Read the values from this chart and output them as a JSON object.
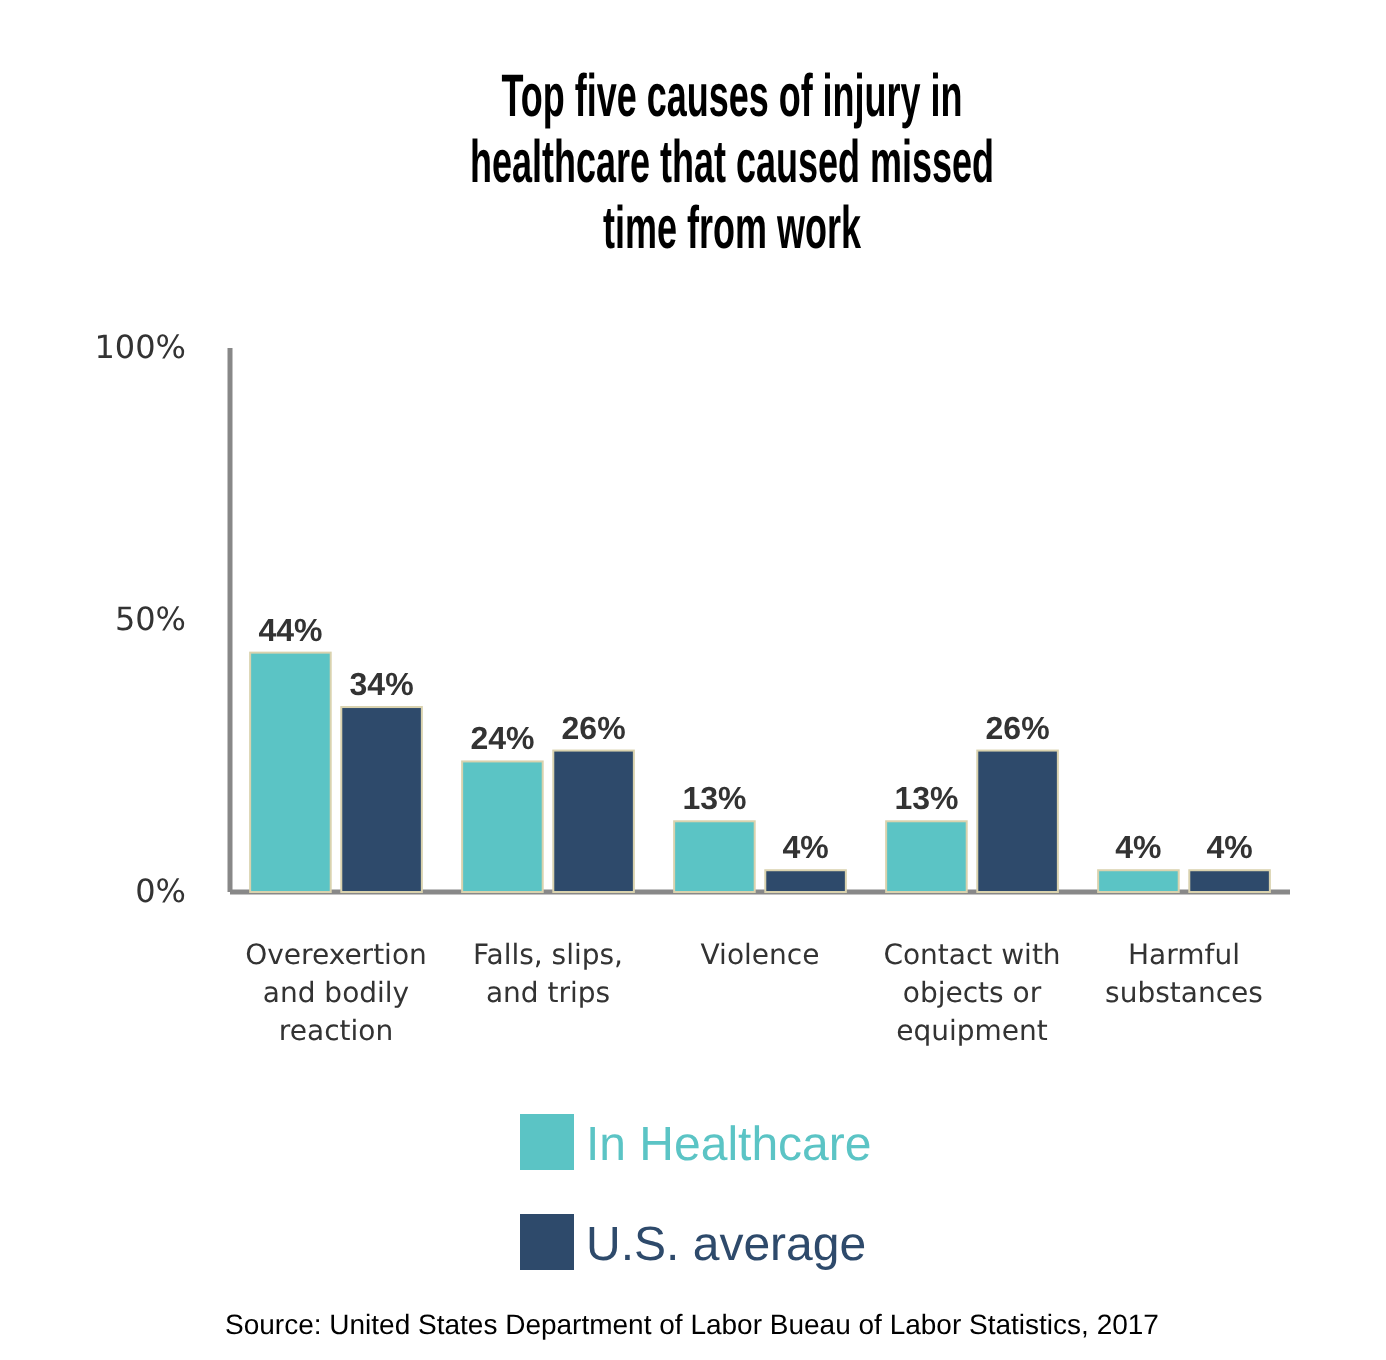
{
  "chart_data": {
    "type": "bar",
    "title": "Top five causes of injury in healthcare that caused missed time from work",
    "categories": [
      "Overexertion and bodily reaction",
      "Falls, slips, and trips",
      "Violence",
      "Contact with objects or equipment",
      "Harmful substances"
    ],
    "series": [
      {
        "name": "In Healthcare",
        "color": "#5bc4c5",
        "values": [
          44,
          24,
          13,
          13,
          4
        ],
        "value_labels": [
          "44%",
          "24%",
          "13%",
          "13%",
          "4%"
        ]
      },
      {
        "name": "U.S. average",
        "color": "#2e4a6b",
        "values": [
          34,
          26,
          4,
          26,
          4
        ],
        "value_labels": [
          "34%",
          "26%",
          "4%",
          "26%",
          "4%"
        ]
      }
    ],
    "ylim": [
      0,
      100
    ],
    "yticks": [
      {
        "value": 0,
        "label": "0%"
      },
      {
        "value": 50,
        "label": "50%"
      },
      {
        "value": 100,
        "label": "100%"
      }
    ],
    "legend": "bottom",
    "grid": false,
    "annotations": [
      "Source: United States Department of Labor Bueau of Labor Statistics, 2017"
    ]
  }
}
